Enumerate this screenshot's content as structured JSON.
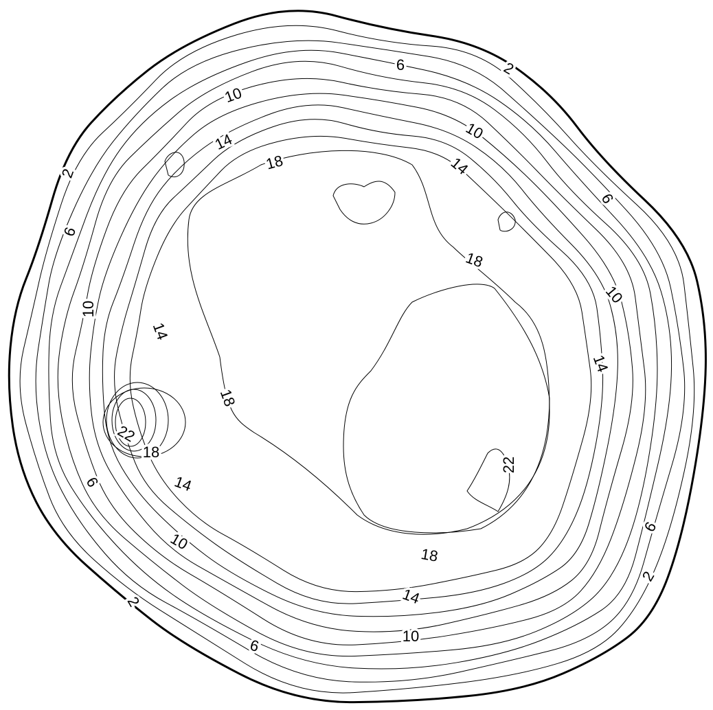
{
  "contour_labels": [
    6,
    2,
    10,
    10,
    14,
    18,
    14,
    2,
    6,
    6,
    18,
    10,
    10,
    14,
    14,
    18,
    22,
    18,
    22,
    14,
    6,
    6,
    10,
    18,
    2,
    14,
    2,
    10,
    6
  ]
}
